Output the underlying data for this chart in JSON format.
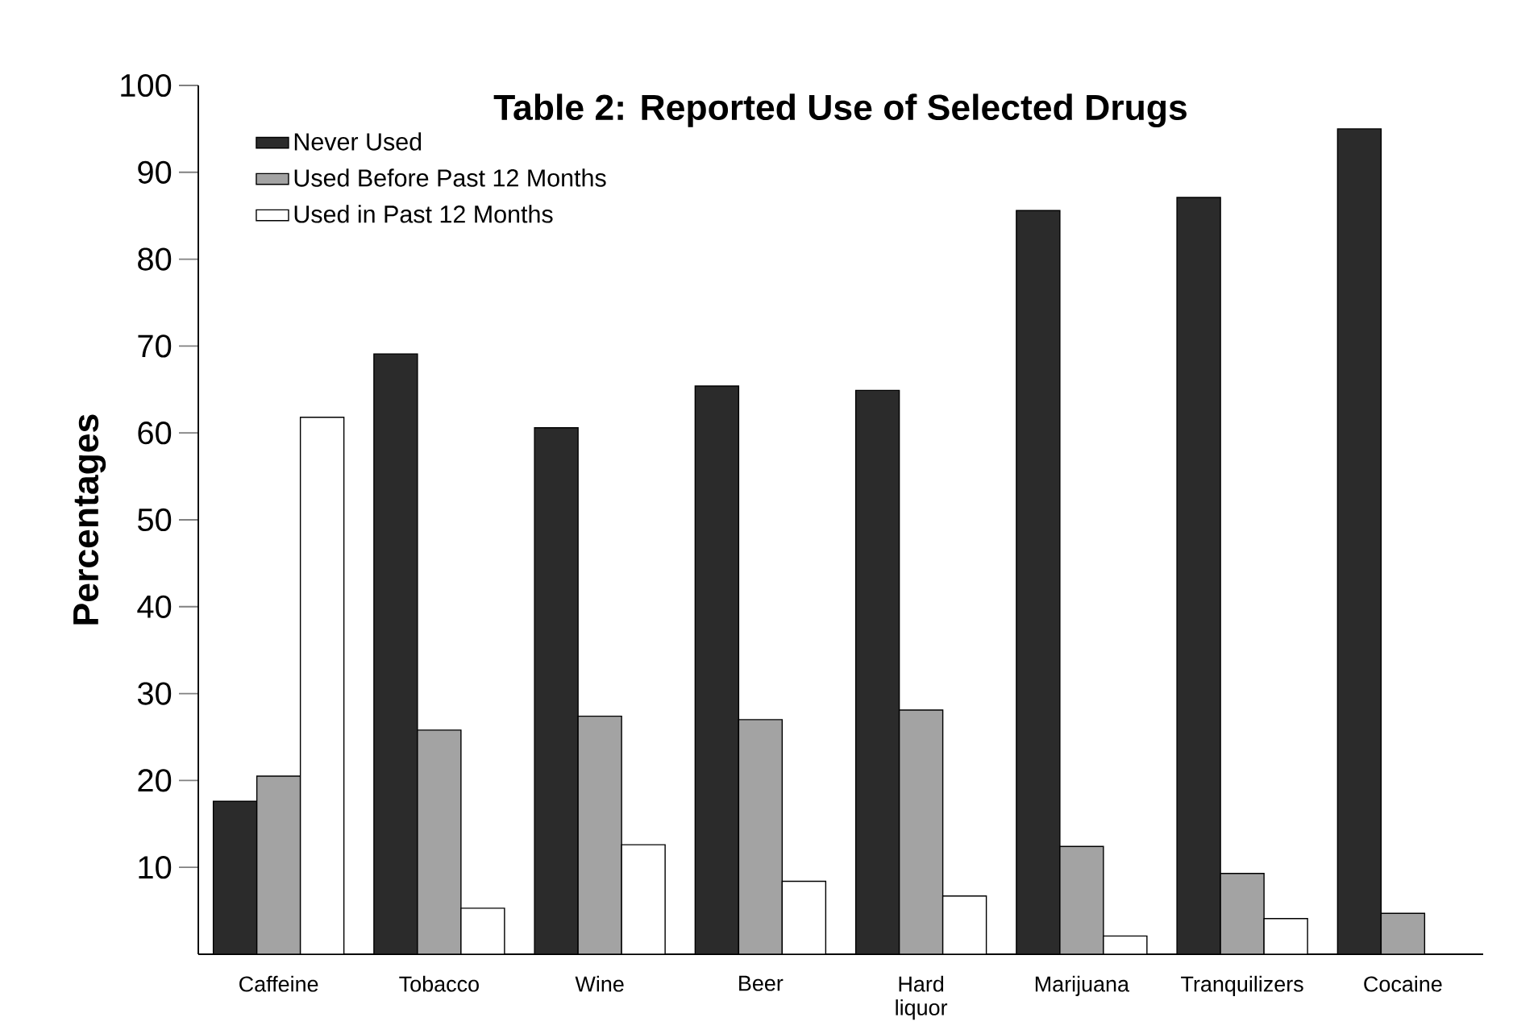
{
  "chart_data": {
    "type": "bar",
    "title": "Table 2: Reported Use of Selected Drugs",
    "ylabel": "Percentages",
    "categories": [
      "Caffeine",
      "Tobacco",
      "Wine",
      "Beer",
      "Hard liquor",
      "Marijuana",
      "Tranquilizers",
      "Cocaine"
    ],
    "series": [
      {
        "name": "Never Used",
        "color": "#2b2b2b",
        "values": [
          17.6,
          69.1,
          60.6,
          65.4,
          64.9,
          85.6,
          87.1,
          95.0
        ]
      },
      {
        "name": "Used Before Past 12 Months",
        "color": "#a3a3a3",
        "values": [
          20.5,
          25.8,
          27.4,
          27.0,
          28.1,
          12.4,
          9.3,
          4.7
        ]
      },
      {
        "name": "Used in Past 12 Months",
        "color": "#ffffff",
        "values": [
          61.8,
          5.3,
          12.6,
          8.4,
          6.7,
          2.1,
          4.1,
          null
        ]
      }
    ],
    "ylim": [
      0,
      100
    ],
    "yticks": [
      10,
      20,
      30,
      40,
      50,
      60,
      70,
      80,
      90,
      100
    ],
    "legend": "top left",
    "grid": false
  }
}
